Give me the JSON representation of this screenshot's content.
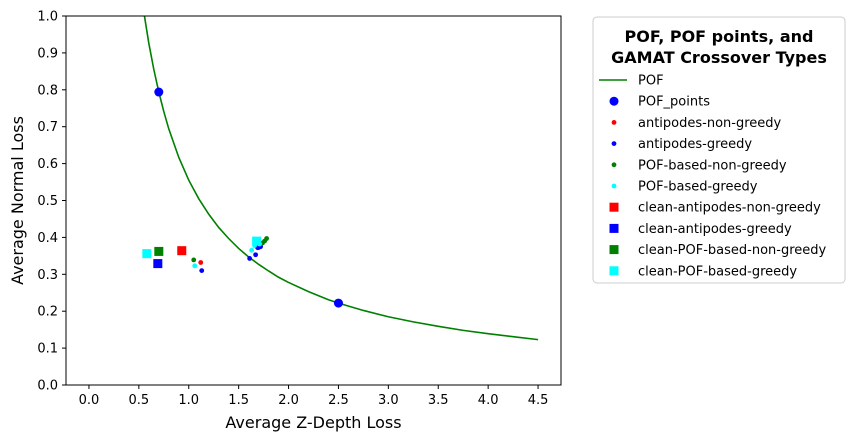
{
  "chart_data": {
    "type": "scatter",
    "title": "",
    "xlabel": "Average Z-Depth Loss",
    "ylabel": "Average Normal Loss",
    "xlim": [
      -0.23,
      4.73
    ],
    "ylim": [
      0.0,
      1.0
    ],
    "xticks": [
      0.0,
      0.5,
      1.0,
      1.5,
      2.0,
      2.5,
      3.0,
      3.5,
      4.0,
      4.5
    ],
    "xtick_labels": [
      "0.0",
      "0.5",
      "1.0",
      "1.5",
      "2.0",
      "2.5",
      "3.0",
      "3.5",
      "4.0",
      "4.5"
    ],
    "yticks": [
      0.0,
      0.1,
      0.2,
      0.3,
      0.4,
      0.5,
      0.6,
      0.7,
      0.8,
      0.9,
      1.0
    ],
    "ytick_labels": [
      "0.0",
      "0.1",
      "0.2",
      "0.3",
      "0.4",
      "0.5",
      "0.6",
      "0.7",
      "0.8",
      "0.9",
      "1.0"
    ],
    "grid": false,
    "legend": {
      "title_lines": [
        "POF, POF points, and",
        "GAMAT Crossover Types"
      ],
      "placement": "outside-right"
    },
    "curve": {
      "name": "POF",
      "color": "#008000",
      "type": "line",
      "x": [
        0.5,
        0.55,
        0.6,
        0.65,
        0.7,
        0.75,
        0.8,
        0.9,
        1.0,
        1.1,
        1.2,
        1.3,
        1.4,
        1.5,
        1.6,
        1.7,
        1.8,
        1.9,
        2.0,
        2.2,
        2.4,
        2.5,
        2.75,
        3.0,
        3.25,
        3.5,
        3.75,
        4.0,
        4.25,
        4.5
      ],
      "y": [
        1.11,
        1.01,
        0.926,
        0.855,
        0.794,
        0.741,
        0.694,
        0.617,
        0.555,
        0.505,
        0.463,
        0.427,
        0.397,
        0.37,
        0.347,
        0.327,
        0.309,
        0.292,
        0.278,
        0.253,
        0.231,
        0.222,
        0.202,
        0.185,
        0.171,
        0.159,
        0.148,
        0.139,
        0.131,
        0.123
      ]
    },
    "series": [
      {
        "name": "POF_points",
        "color": "#0000ff",
        "marker": "circle-large",
        "x": [
          0.7,
          2.5
        ],
        "y": [
          0.794,
          0.222
        ]
      },
      {
        "name": "antipodes-non-greedy",
        "color": "#ff0000",
        "marker": "dot",
        "x": [
          1.12,
          1.7
        ],
        "y": [
          0.332,
          0.372
        ]
      },
      {
        "name": "antipodes-greedy",
        "color": "#0000ff",
        "marker": "dot",
        "x": [
          1.13,
          1.61,
          1.67,
          1.69,
          1.72
        ],
        "y": [
          0.31,
          0.343,
          0.353,
          0.372,
          0.375
        ]
      },
      {
        "name": "POF-based-non-greedy",
        "color": "#008000",
        "marker": "dot",
        "x": [
          1.05,
          1.74,
          1.76,
          1.78
        ],
        "y": [
          0.339,
          0.385,
          0.39,
          0.397
        ]
      },
      {
        "name": "POF-based-greedy",
        "color": "#00ffff",
        "marker": "dot",
        "x": [
          1.06,
          1.63,
          1.66,
          1.67,
          1.71
        ],
        "y": [
          0.323,
          0.365,
          0.378,
          0.392,
          0.382
        ]
      },
      {
        "name": "clean-antipodes-non-greedy",
        "color": "#ff0000",
        "marker": "square",
        "x": [
          0.93
        ],
        "y": [
          0.364
        ]
      },
      {
        "name": "clean-antipodes-greedy",
        "color": "#0000ff",
        "marker": "square",
        "x": [
          0.69
        ],
        "y": [
          0.329
        ]
      },
      {
        "name": "clean-POF-based-non-greedy",
        "color": "#008000",
        "marker": "square",
        "x": [
          0.7
        ],
        "y": [
          0.362
        ]
      },
      {
        "name": "clean-POF-based-greedy",
        "color": "#00ffff",
        "marker": "square",
        "x": [
          0.58,
          1.68
        ],
        "y": [
          0.356,
          0.39
        ]
      }
    ]
  }
}
